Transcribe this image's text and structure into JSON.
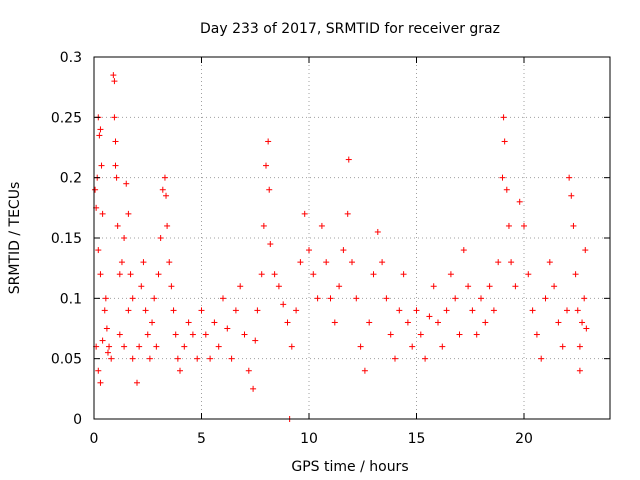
{
  "chart_data": {
    "type": "scatter",
    "title": "Day 233 of 2017, SRMTID for receiver graz",
    "xlabel": "GPS time / hours",
    "ylabel": "SRMTID / TECUs",
    "xlim": [
      0,
      24
    ],
    "ylim": [
      0,
      0.3
    ],
    "x_ticks": [
      0,
      5,
      10,
      15,
      20
    ],
    "x_tick_labels": [
      "0",
      "5",
      "10",
      "15",
      "20"
    ],
    "y_ticks": [
      0,
      0.05,
      0.1,
      0.15,
      0.2,
      0.25,
      0.3
    ],
    "y_tick_labels": [
      "0",
      "0.05",
      "0.1",
      "0.15",
      "0.2",
      "0.25",
      "0.3"
    ],
    "grid": true,
    "marker": "+",
    "series": [
      {
        "name": "SRMTID",
        "color": "#ff0000",
        "points": [
          [
            0.05,
            0.19
          ],
          [
            0.1,
            0.175
          ],
          [
            0.15,
            0.2
          ],
          [
            0.2,
            0.25
          ],
          [
            0.25,
            0.235
          ],
          [
            0.3,
            0.24
          ],
          [
            0.35,
            0.21
          ],
          [
            0.2,
            0.14
          ],
          [
            0.3,
            0.12
          ],
          [
            0.4,
            0.17
          ],
          [
            0.1,
            0.06
          ],
          [
            0.2,
            0.04
          ],
          [
            0.3,
            0.03
          ],
          [
            0.4,
            0.065
          ],
          [
            0.5,
            0.09
          ],
          [
            0.6,
            0.075
          ],
          [
            0.7,
            0.06
          ],
          [
            0.8,
            0.05
          ],
          [
            0.55,
            0.1
          ],
          [
            0.65,
            0.055
          ],
          [
            0.9,
            0.285
          ],
          [
            0.95,
            0.28
          ],
          [
            0.95,
            0.25
          ],
          [
            1.0,
            0.23
          ],
          [
            1.0,
            0.21
          ],
          [
            1.05,
            0.2
          ],
          [
            1.1,
            0.16
          ],
          [
            1.2,
            0.12
          ],
          [
            1.3,
            0.13
          ],
          [
            1.4,
            0.15
          ],
          [
            1.5,
            0.195
          ],
          [
            1.6,
            0.17
          ],
          [
            1.7,
            0.12
          ],
          [
            1.8,
            0.1
          ],
          [
            1.2,
            0.07
          ],
          [
            1.4,
            0.06
          ],
          [
            1.6,
            0.09
          ],
          [
            1.8,
            0.05
          ],
          [
            2.0,
            0.03
          ],
          [
            2.1,
            0.06
          ],
          [
            2.2,
            0.11
          ],
          [
            2.3,
            0.13
          ],
          [
            2.4,
            0.09
          ],
          [
            2.5,
            0.07
          ],
          [
            2.6,
            0.05
          ],
          [
            2.7,
            0.08
          ],
          [
            2.8,
            0.1
          ],
          [
            2.9,
            0.06
          ],
          [
            3.0,
            0.12
          ],
          [
            3.1,
            0.15
          ],
          [
            3.2,
            0.19
          ],
          [
            3.3,
            0.2
          ],
          [
            3.35,
            0.185
          ],
          [
            3.4,
            0.16
          ],
          [
            3.5,
            0.13
          ],
          [
            3.6,
            0.11
          ],
          [
            3.7,
            0.09
          ],
          [
            3.8,
            0.07
          ],
          [
            3.9,
            0.05
          ],
          [
            4.0,
            0.04
          ],
          [
            4.2,
            0.06
          ],
          [
            4.4,
            0.08
          ],
          [
            4.6,
            0.07
          ],
          [
            4.8,
            0.05
          ],
          [
            5.0,
            0.09
          ],
          [
            5.2,
            0.07
          ],
          [
            5.4,
            0.05
          ],
          [
            5.6,
            0.08
          ],
          [
            5.8,
            0.06
          ],
          [
            6.0,
            0.1
          ],
          [
            6.2,
            0.075
          ],
          [
            6.4,
            0.05
          ],
          [
            6.6,
            0.09
          ],
          [
            6.8,
            0.11
          ],
          [
            7.0,
            0.07
          ],
          [
            7.2,
            0.04
          ],
          [
            7.4,
            0.025
          ],
          [
            7.5,
            0.065
          ],
          [
            7.6,
            0.09
          ],
          [
            7.8,
            0.12
          ],
          [
            7.9,
            0.16
          ],
          [
            8.0,
            0.21
          ],
          [
            8.1,
            0.23
          ],
          [
            8.15,
            0.19
          ],
          [
            8.2,
            0.145
          ],
          [
            8.4,
            0.12
          ],
          [
            8.6,
            0.11
          ],
          [
            8.8,
            0.095
          ],
          [
            9.0,
            0.08
          ],
          [
            9.1,
            0.0
          ],
          [
            9.2,
            0.06
          ],
          [
            9.4,
            0.09
          ],
          [
            9.6,
            0.13
          ],
          [
            9.8,
            0.17
          ],
          [
            10.0,
            0.14
          ],
          [
            10.2,
            0.12
          ],
          [
            10.4,
            0.1
          ],
          [
            10.6,
            0.16
          ],
          [
            10.8,
            0.13
          ],
          [
            11.0,
            0.1
          ],
          [
            11.2,
            0.08
          ],
          [
            11.4,
            0.11
          ],
          [
            11.6,
            0.14
          ],
          [
            11.8,
            0.17
          ],
          [
            11.85,
            0.215
          ],
          [
            12.0,
            0.13
          ],
          [
            12.2,
            0.1
          ],
          [
            12.4,
            0.06
          ],
          [
            12.6,
            0.04
          ],
          [
            12.8,
            0.08
          ],
          [
            13.0,
            0.12
          ],
          [
            13.2,
            0.155
          ],
          [
            13.4,
            0.13
          ],
          [
            13.6,
            0.1
          ],
          [
            13.8,
            0.07
          ],
          [
            14.0,
            0.05
          ],
          [
            14.2,
            0.09
          ],
          [
            14.4,
            0.12
          ],
          [
            14.6,
            0.08
          ],
          [
            14.8,
            0.06
          ],
          [
            15.0,
            0.09
          ],
          [
            15.2,
            0.07
          ],
          [
            15.4,
            0.05
          ],
          [
            15.6,
            0.085
          ],
          [
            15.8,
            0.11
          ],
          [
            16.0,
            0.08
          ],
          [
            16.2,
            0.06
          ],
          [
            16.4,
            0.09
          ],
          [
            16.6,
            0.12
          ],
          [
            16.8,
            0.1
          ],
          [
            17.0,
            0.07
          ],
          [
            17.2,
            0.14
          ],
          [
            17.4,
            0.11
          ],
          [
            17.6,
            0.09
          ],
          [
            17.8,
            0.07
          ],
          [
            18.0,
            0.1
          ],
          [
            18.2,
            0.08
          ],
          [
            18.4,
            0.11
          ],
          [
            18.6,
            0.09
          ],
          [
            18.8,
            0.13
          ],
          [
            19.0,
            0.2
          ],
          [
            19.05,
            0.25
          ],
          [
            19.1,
            0.23
          ],
          [
            19.2,
            0.19
          ],
          [
            19.3,
            0.16
          ],
          [
            19.4,
            0.13
          ],
          [
            19.6,
            0.11
          ],
          [
            19.8,
            0.18
          ],
          [
            20.0,
            0.16
          ],
          [
            20.2,
            0.12
          ],
          [
            20.4,
            0.09
          ],
          [
            20.6,
            0.07
          ],
          [
            20.8,
            0.05
          ],
          [
            21.0,
            0.1
          ],
          [
            21.2,
            0.13
          ],
          [
            21.4,
            0.11
          ],
          [
            21.6,
            0.08
          ],
          [
            21.8,
            0.06
          ],
          [
            22.0,
            0.09
          ],
          [
            22.1,
            0.2
          ],
          [
            22.2,
            0.185
          ],
          [
            22.3,
            0.16
          ],
          [
            22.4,
            0.12
          ],
          [
            22.5,
            0.09
          ],
          [
            22.6,
            0.06
          ],
          [
            22.7,
            0.08
          ],
          [
            22.8,
            0.1
          ],
          [
            22.85,
            0.14
          ],
          [
            22.9,
            0.075
          ],
          [
            22.6,
            0.04
          ]
        ]
      }
    ]
  }
}
